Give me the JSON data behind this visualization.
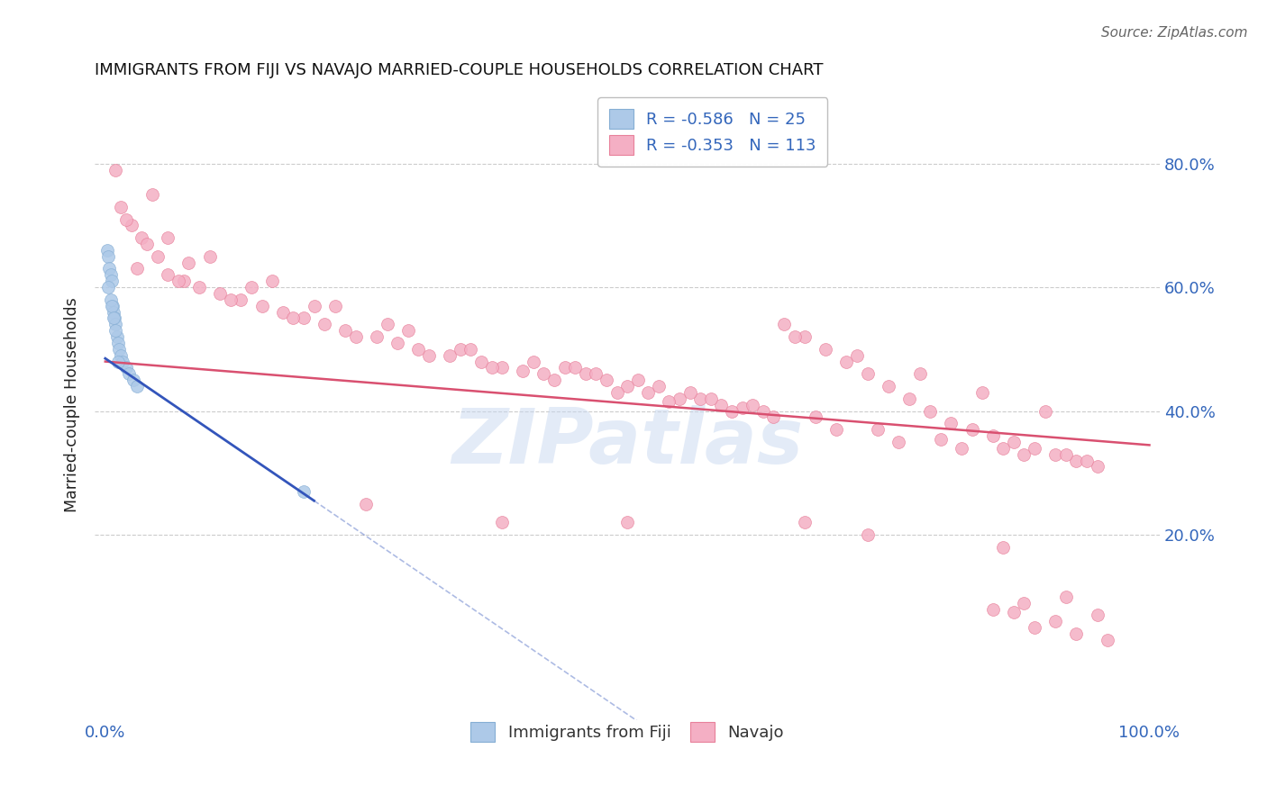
{
  "title": "IMMIGRANTS FROM FIJI VS NAVAJO MARRIED-COUPLE HOUSEHOLDS CORRELATION CHART",
  "source": "Source: ZipAtlas.com",
  "ylabel": "Married-couple Households",
  "xlim": [
    -1.0,
    101.0
  ],
  "ylim": [
    -10.0,
    92.0
  ],
  "background_color": "#ffffff",
  "grid_color": "#cccccc",
  "fiji_color": "#adc9e8",
  "fiji_edge_color": "#85aed4",
  "navajo_color": "#f4afc4",
  "navajo_edge_color": "#e8809a",
  "fiji_R": -0.586,
  "fiji_N": 25,
  "navajo_R": -0.353,
  "navajo_N": 113,
  "fiji_line_color": "#3355bb",
  "navajo_line_color": "#d95070",
  "fiji_line_solid_end": 20.0,
  "fiji_line_y0": 48.5,
  "fiji_line_slope": -1.15,
  "navajo_line_y0": 48.0,
  "navajo_line_slope": -0.135,
  "fiji_x": [
    0.2,
    0.3,
    0.4,
    0.5,
    0.6,
    0.7,
    0.8,
    0.9,
    1.0,
    1.1,
    1.2,
    1.3,
    1.5,
    1.7,
    2.0,
    2.3,
    2.7,
    3.0,
    0.3,
    0.5,
    0.6,
    0.8,
    1.0,
    1.2,
    19.0
  ],
  "fiji_y": [
    66,
    65,
    63,
    62,
    61,
    57,
    56,
    55,
    54,
    52,
    51,
    50,
    49,
    48,
    47,
    46,
    45,
    44,
    60,
    58,
    57,
    55,
    53,
    48,
    27
  ],
  "navajo_x": [
    1.5,
    2.5,
    3.5,
    5.0,
    6.0,
    7.5,
    9.0,
    11.0,
    13.0,
    15.0,
    17.0,
    19.0,
    21.0,
    23.0,
    26.0,
    28.0,
    30.0,
    33.0,
    36.0,
    38.0,
    40.0,
    42.0,
    44.0,
    46.0,
    48.0,
    50.0,
    52.0,
    55.0,
    57.0,
    59.0,
    61.0,
    63.0,
    65.0,
    67.0,
    69.0,
    71.0,
    73.0,
    75.0,
    77.0,
    79.0,
    81.0,
    83.0,
    85.0,
    87.0,
    89.0,
    91.0,
    93.0,
    95.0,
    3.0,
    7.0,
    12.0,
    18.0,
    24.0,
    31.0,
    37.0,
    43.0,
    49.0,
    54.0,
    60.0,
    66.0,
    72.0,
    78.0,
    84.0,
    90.0,
    4.0,
    8.0,
    14.0,
    20.0,
    27.0,
    34.0,
    41.0,
    47.0,
    53.0,
    58.0,
    64.0,
    70.0,
    76.0,
    82.0,
    88.0,
    94.0,
    2.0,
    6.0,
    10.0,
    16.0,
    22.0,
    29.0,
    35.0,
    45.0,
    51.0,
    56.0,
    62.0,
    68.0,
    74.0,
    80.0,
    86.0,
    92.0,
    1.0,
    4.5,
    50.0,
    67.0,
    25.0,
    38.0,
    73.0,
    86.0,
    92.0,
    95.0,
    88.0,
    91.0,
    85.0,
    89.0,
    93.0,
    96.0,
    87.0
  ],
  "navajo_y": [
    73.0,
    70.0,
    68.0,
    65.0,
    62.0,
    61.0,
    60.0,
    59.0,
    58.0,
    57.0,
    56.0,
    55.0,
    54.0,
    53.0,
    52.0,
    51.0,
    50.0,
    49.0,
    48.0,
    47.0,
    46.5,
    46.0,
    47.0,
    46.0,
    45.0,
    44.0,
    43.0,
    42.0,
    42.0,
    41.0,
    40.5,
    40.0,
    54.0,
    52.0,
    50.0,
    48.0,
    46.0,
    44.0,
    42.0,
    40.0,
    38.0,
    37.0,
    36.0,
    35.0,
    34.0,
    33.0,
    32.0,
    31.0,
    63.0,
    61.0,
    58.0,
    55.0,
    52.0,
    49.0,
    47.0,
    45.0,
    43.0,
    41.5,
    40.0,
    52.0,
    49.0,
    46.0,
    43.0,
    40.0,
    67.0,
    64.0,
    60.0,
    57.0,
    54.0,
    50.0,
    48.0,
    46.0,
    44.0,
    42.0,
    39.0,
    37.0,
    35.0,
    34.0,
    33.0,
    32.0,
    71.0,
    68.0,
    65.0,
    61.0,
    57.0,
    53.0,
    50.0,
    47.0,
    45.0,
    43.0,
    41.0,
    39.0,
    37.0,
    35.5,
    34.0,
    33.0,
    79.0,
    75.0,
    22.0,
    22.0,
    25.0,
    22.0,
    20.0,
    18.0,
    10.0,
    7.0,
    9.0,
    6.0,
    8.0,
    5.0,
    4.0,
    3.0,
    7.5
  ],
  "watermark_text": "ZIPatlas",
  "watermark_color": "#c8d8f0",
  "watermark_alpha": 0.5,
  "legend_fiji_label": "Immigrants from Fiji",
  "legend_navajo_label": "Navajo",
  "title_color": "#111111",
  "source_color": "#666666",
  "axis_label_color": "#222222",
  "tick_label_color": "#3366bb",
  "marker_size": 100,
  "marker_alpha": 0.85
}
